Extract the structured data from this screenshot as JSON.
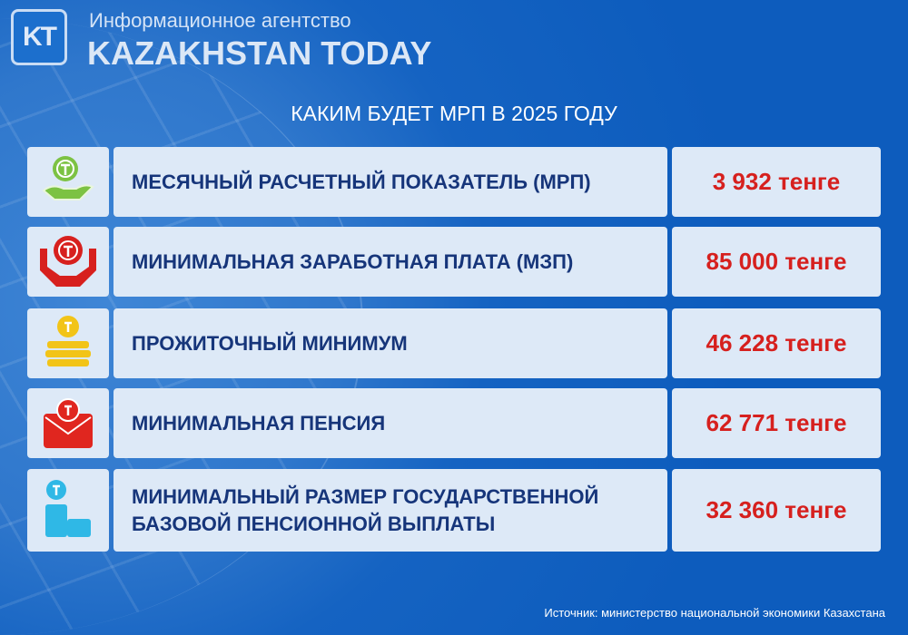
{
  "header": {
    "logo": "KT",
    "agency_label": "Информационное агентство",
    "brand": "KAZAKHSTAN TODAY"
  },
  "title": "КАКИМ БУДЕТ МРП В 2025 ГОДУ",
  "rows": [
    {
      "label": "МЕСЯЧНЫЙ РАСЧЕТНЫЙ ПОКАЗАТЕЛЬ (МРП)",
      "value": "3 932 тенге",
      "icon": "coin-hand-icon",
      "color": "#7cc243"
    },
    {
      "label": "МИНИМАЛЬНАЯ ЗАРАБОТНАЯ ПЛАТА (МЗП)",
      "value": "85 000 тенге",
      "icon": "coin-two-hands-icon",
      "color": "#d7201e"
    },
    {
      "label": "ПРОЖИТОЧНЫЙ МИНИМУМ",
      "value": "46 228 тенге",
      "icon": "coin-stack-icon",
      "color": "#f2c418"
    },
    {
      "label": "МИНИМАЛЬНАЯ ПЕНСИЯ",
      "value": "62 771 тенге",
      "icon": "coin-envelope-icon",
      "color": "#e0261f"
    },
    {
      "label_line1": "МИНИМАЛЬНЫЙ РАЗМЕР ГОСУДАРСТВЕННОЙ",
      "label_line2": "БАЗОВОЙ ПЕНСИОННОЙ ВЫПЛАТЫ",
      "value": "32 360 тенге",
      "icon": "coin-steps-icon",
      "color": "#2fb8e6"
    }
  ],
  "source": "Источник: министерство национальной экономики Казахстана"
}
